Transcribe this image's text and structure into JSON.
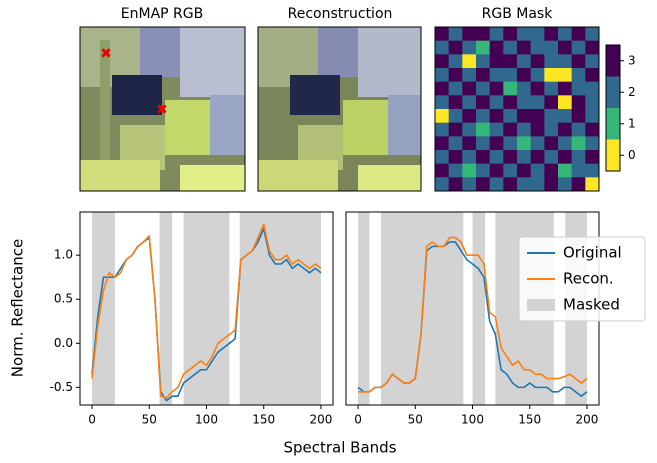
{
  "images": [
    {
      "title": "EnMAP RGB"
    },
    {
      "title": "Reconstruction"
    }
  ],
  "chart_data": [
    {
      "type": "heatmap",
      "title": "RGB Mask",
      "values": [
        [
          3,
          2,
          3,
          3,
          2,
          3,
          2,
          2,
          3,
          2,
          3,
          2
        ],
        [
          2,
          3,
          2,
          1,
          3,
          2,
          3,
          2,
          2,
          3,
          2,
          3
        ],
        [
          3,
          2,
          0,
          2,
          3,
          3,
          2,
          3,
          2,
          2,
          3,
          2
        ],
        [
          2,
          3,
          2,
          3,
          2,
          2,
          3,
          2,
          0,
          0,
          2,
          3
        ],
        [
          3,
          2,
          3,
          2,
          3,
          1,
          2,
          3,
          2,
          3,
          2,
          2
        ],
        [
          2,
          3,
          2,
          3,
          2,
          3,
          2,
          2,
          3,
          0,
          3,
          2
        ],
        [
          0,
          2,
          3,
          2,
          3,
          2,
          3,
          3,
          2,
          2,
          3,
          2
        ],
        [
          2,
          3,
          2,
          1,
          2,
          3,
          2,
          3,
          2,
          3,
          2,
          3
        ],
        [
          3,
          2,
          3,
          2,
          3,
          2,
          1,
          2,
          3,
          2,
          1,
          2
        ],
        [
          2,
          3,
          2,
          3,
          2,
          3,
          2,
          3,
          2,
          3,
          2,
          3
        ],
        [
          3,
          2,
          1,
          2,
          3,
          2,
          3,
          2,
          3,
          1,
          2,
          2
        ],
        [
          2,
          3,
          2,
          3,
          2,
          3,
          2,
          2,
          3,
          2,
          3,
          0
        ]
      ],
      "colors": [
        "#fde725",
        "#35b779",
        "#31688e",
        "#440154"
      ],
      "clim": [
        -0.5,
        3.5
      ],
      "colorbar_ticks": [
        0,
        1,
        2,
        3
      ]
    },
    {
      "type": "line",
      "ylabel": "Norm. Reflectance",
      "xlabel": "Spectral Bands",
      "x": [
        0,
        5,
        10,
        15,
        20,
        25,
        30,
        35,
        40,
        45,
        50,
        55,
        60,
        65,
        70,
        75,
        80,
        85,
        90,
        95,
        100,
        105,
        110,
        115,
        120,
        125,
        130,
        135,
        140,
        145,
        150,
        155,
        160,
        165,
        170,
        175,
        180,
        185,
        190,
        195,
        200
      ],
      "series": [
        {
          "name": "Original",
          "color": "#1f77b4",
          "values": [
            -0.35,
            0.3,
            0.75,
            0.75,
            0.75,
            0.85,
            0.95,
            1.0,
            1.1,
            1.15,
            1.2,
            0.5,
            -0.55,
            -0.65,
            -0.6,
            -0.6,
            -0.45,
            -0.4,
            -0.35,
            -0.3,
            -0.3,
            -0.2,
            -0.1,
            -0.05,
            0.0,
            0.05,
            0.95,
            1.0,
            1.05,
            1.15,
            1.3,
            1.0,
            0.9,
            0.9,
            0.95,
            0.85,
            0.9,
            0.85,
            0.8,
            0.85,
            0.8
          ]
        },
        {
          "name": "Recon.",
          "color": "#ff7f0e",
          "values": [
            -0.4,
            0.2,
            0.6,
            0.8,
            0.75,
            0.8,
            0.95,
            1.0,
            1.1,
            1.15,
            1.22,
            0.5,
            -0.6,
            -0.62,
            -0.55,
            -0.5,
            -0.35,
            -0.3,
            -0.25,
            -0.2,
            -0.25,
            -0.15,
            0.0,
            0.05,
            0.1,
            0.15,
            0.95,
            1.0,
            1.05,
            1.2,
            1.35,
            1.05,
            0.95,
            0.95,
            1.0,
            0.9,
            0.95,
            0.9,
            0.85,
            0.9,
            0.85
          ]
        }
      ],
      "masked": {
        "name": "Masked",
        "color": "#d3d3d3",
        "ranges": [
          [
            0,
            20
          ],
          [
            59,
            70
          ],
          [
            80,
            120
          ],
          [
            129,
            200
          ]
        ]
      },
      "xlim": [
        -10.5,
        210.5
      ],
      "ylim": [
        -0.7,
        1.49
      ],
      "xticks": [
        0,
        50,
        100,
        150,
        200
      ],
      "yticks": [
        -0.5,
        0.0,
        0.5,
        1.0
      ]
    },
    {
      "type": "line",
      "x": [
        0,
        5,
        10,
        15,
        20,
        25,
        30,
        35,
        40,
        45,
        50,
        55,
        60,
        65,
        70,
        75,
        80,
        85,
        90,
        95,
        100,
        105,
        110,
        115,
        120,
        125,
        130,
        135,
        140,
        145,
        150,
        155,
        160,
        165,
        170,
        175,
        180,
        185,
        190,
        195,
        200
      ],
      "series": [
        {
          "name": "Original",
          "color": "#1f77b4",
          "values": [
            -0.5,
            -0.55,
            -0.55,
            -0.5,
            -0.5,
            -0.45,
            -0.35,
            -0.4,
            -0.45,
            -0.45,
            -0.4,
            0.1,
            1.05,
            1.1,
            1.1,
            1.1,
            1.15,
            1.15,
            1.05,
            0.95,
            0.9,
            0.85,
            0.75,
            0.25,
            0.1,
            -0.3,
            -0.35,
            -0.45,
            -0.5,
            -0.5,
            -0.45,
            -0.5,
            -0.5,
            -0.5,
            -0.55,
            -0.55,
            -0.5,
            -0.5,
            -0.55,
            -0.6,
            -0.55
          ]
        },
        {
          "name": "Recon.",
          "color": "#ff7f0e",
          "values": [
            -0.55,
            -0.55,
            -0.55,
            -0.5,
            -0.5,
            -0.45,
            -0.35,
            -0.4,
            -0.45,
            -0.45,
            -0.4,
            0.1,
            1.1,
            1.15,
            1.1,
            1.1,
            1.2,
            1.2,
            1.15,
            1.0,
            1.0,
            1.0,
            0.9,
            0.35,
            0.3,
            -0.05,
            -0.15,
            -0.25,
            -0.2,
            -0.3,
            -0.3,
            -0.35,
            -0.35,
            -0.4,
            -0.4,
            -0.4,
            -0.38,
            -0.35,
            -0.4,
            -0.45,
            -0.4
          ]
        }
      ],
      "masked": {
        "name": "Masked",
        "color": "#d3d3d3",
        "ranges": [
          [
            0,
            10
          ],
          [
            20,
            92
          ],
          [
            100,
            111
          ],
          [
            120,
            171
          ],
          [
            181,
            200
          ]
        ]
      },
      "xlim": [
        -10.5,
        210.5
      ],
      "ylim": [
        -0.7,
        1.49
      ],
      "xticks": [
        0,
        50,
        100,
        150,
        200
      ],
      "legend": "upper right"
    }
  ]
}
